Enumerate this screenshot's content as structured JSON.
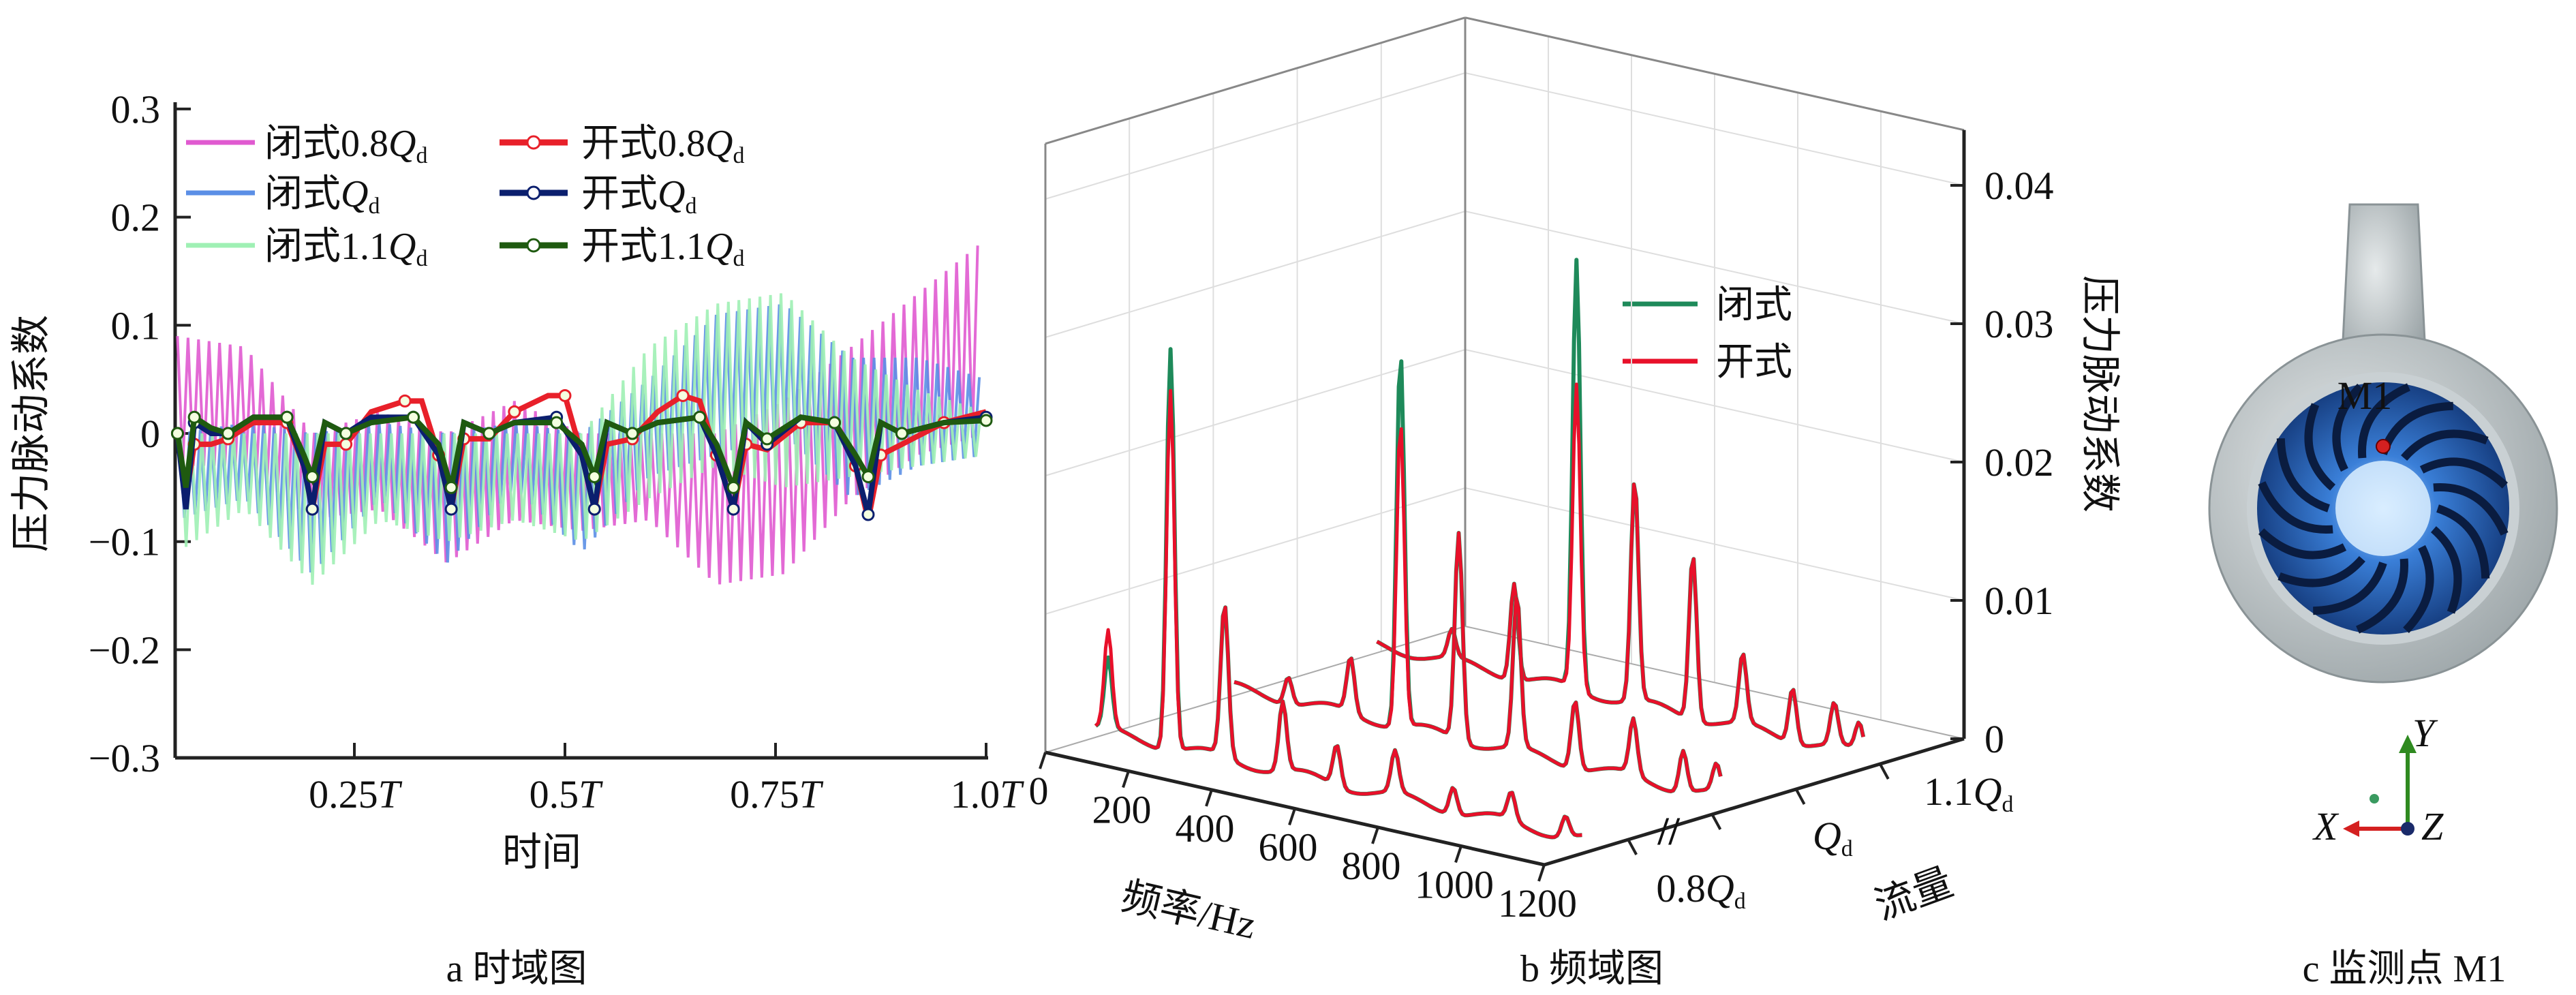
{
  "captions": {
    "a": "a  时域图",
    "b": "b  频域图",
    "c": "c  监测点 M1"
  },
  "chart_data": [
    {
      "type": "line",
      "title": "时域图",
      "xlabel": "时间",
      "ylabel": "压力脉动系数",
      "xlim": [
        0.037,
        1.0
      ],
      "ylim": [
        -0.3,
        0.3
      ],
      "yticks": [
        0.3,
        0.2,
        0.1,
        0,
        -0.1,
        -0.2,
        -0.3
      ],
      "ytick_labels": [
        "0.3",
        "0.2",
        "0.1",
        "0",
        "−0.1",
        "−0.2",
        "−0.3"
      ],
      "xticks": [
        0.25,
        0.5,
        0.75,
        1.0
      ],
      "xtick_labels": [
        [
          "0.25",
          "T"
        ],
        [
          "0.5",
          "T"
        ],
        [
          "0.75",
          "T"
        ],
        [
          "1.0",
          "T"
        ]
      ],
      "legend_position": "top-left",
      "closed_envelope_x": [
        0.04,
        0.12,
        0.2,
        0.28,
        0.36,
        0.44,
        0.52,
        0.6,
        0.68,
        0.76,
        0.84,
        0.92,
        1.0
      ],
      "closed_series": [
        {
          "prefix": "闭式0.8",
          "q": "Q",
          "sub": "d",
          "color": "#e05ad0",
          "upper": [
            0.09,
            0.08,
            0.0,
            0.02,
            0.0,
            0.03,
            0.0,
            0.0,
            0.0,
            0.03,
            0.08,
            0.13,
            0.18
          ],
          "lower": [
            -0.03,
            -0.03,
            -0.08,
            -0.07,
            -0.12,
            -0.08,
            -0.09,
            -0.08,
            -0.14,
            -0.13,
            -0.06,
            -0.02,
            0.0
          ]
        },
        {
          "prefix": "闭式",
          "q": "Q",
          "sub": "d",
          "color": "#5b8fe6",
          "upper": [
            0.0,
            0.01,
            0.0,
            0.01,
            0.0,
            0.01,
            0.0,
            0.05,
            0.11,
            0.12,
            0.07,
            0.07,
            0.05
          ],
          "lower": [
            -0.08,
            -0.06,
            -0.13,
            -0.06,
            -0.12,
            -0.05,
            -0.11,
            -0.04,
            -0.02,
            0.0,
            -0.06,
            -0.03,
            -0.02
          ]
        },
        {
          "prefix": "闭式1.1",
          "q": "Q",
          "sub": "d",
          "color": "#9ff0b4",
          "upper": [
            0.0,
            0.0,
            0.0,
            0.0,
            0.0,
            0.0,
            0.0,
            0.08,
            0.12,
            0.13,
            0.07,
            0.04,
            0.02
          ],
          "lower": [
            -0.11,
            -0.07,
            -0.14,
            -0.08,
            -0.1,
            -0.08,
            -0.1,
            -0.06,
            -0.03,
            -0.05,
            -0.04,
            -0.03,
            -0.02
          ]
        }
      ],
      "open_series": [
        {
          "prefix": "开式0.8",
          "q": "Q",
          "sub": "d",
          "color": "#e8202a",
          "points": [
            [
              0.04,
              0.0
            ],
            [
              0.05,
              -0.06
            ],
            [
              0.06,
              -0.01
            ],
            [
              0.08,
              -0.01
            ],
            [
              0.1,
              -0.005
            ],
            [
              0.13,
              0.01
            ],
            [
              0.17,
              0.01
            ],
            [
              0.19,
              -0.03
            ],
            [
              0.2,
              -0.07
            ],
            [
              0.215,
              -0.01
            ],
            [
              0.24,
              -0.01
            ],
            [
              0.27,
              0.02
            ],
            [
              0.31,
              0.03
            ],
            [
              0.33,
              0.03
            ],
            [
              0.35,
              -0.02
            ],
            [
              0.365,
              -0.07
            ],
            [
              0.38,
              -0.005
            ],
            [
              0.41,
              -0.005
            ],
            [
              0.44,
              0.02
            ],
            [
              0.48,
              0.035
            ],
            [
              0.5,
              0.035
            ],
            [
              0.52,
              -0.02
            ],
            [
              0.535,
              -0.07
            ],
            [
              0.55,
              -0.01
            ],
            [
              0.58,
              -0.005
            ],
            [
              0.61,
              0.02
            ],
            [
              0.64,
              0.035
            ],
            [
              0.66,
              0.03
            ],
            [
              0.68,
              -0.02
            ],
            [
              0.7,
              -0.07
            ],
            [
              0.715,
              -0.01
            ],
            [
              0.74,
              -0.015
            ],
            [
              0.78,
              0.01
            ],
            [
              0.82,
              0.01
            ],
            [
              0.845,
              -0.03
            ],
            [
              0.86,
              -0.08
            ],
            [
              0.875,
              -0.02
            ],
            [
              0.9,
              -0.01
            ],
            [
              0.95,
              0.01
            ],
            [
              1.0,
              0.02
            ]
          ]
        },
        {
          "prefix": "开式",
          "q": "Q",
          "sub": "d",
          "color": "#0b1f6e",
          "points": [
            [
              0.04,
              0.0
            ],
            [
              0.05,
              -0.07
            ],
            [
              0.06,
              0.01
            ],
            [
              0.08,
              0.0
            ],
            [
              0.1,
              0.0
            ],
            [
              0.13,
              0.015
            ],
            [
              0.17,
              0.015
            ],
            [
              0.19,
              -0.03
            ],
            [
              0.2,
              -0.07
            ],
            [
              0.215,
              0.01
            ],
            [
              0.24,
              0.0
            ],
            [
              0.27,
              0.015
            ],
            [
              0.32,
              0.015
            ],
            [
              0.35,
              -0.02
            ],
            [
              0.365,
              -0.07
            ],
            [
              0.38,
              0.01
            ],
            [
              0.41,
              0.0
            ],
            [
              0.44,
              0.01
            ],
            [
              0.49,
              0.015
            ],
            [
              0.52,
              -0.02
            ],
            [
              0.535,
              -0.07
            ],
            [
              0.55,
              0.01
            ],
            [
              0.58,
              0.0
            ],
            [
              0.61,
              0.01
            ],
            [
              0.66,
              0.015
            ],
            [
              0.68,
              -0.02
            ],
            [
              0.7,
              -0.07
            ],
            [
              0.715,
              0.01
            ],
            [
              0.74,
              -0.01
            ],
            [
              0.78,
              0.015
            ],
            [
              0.82,
              0.01
            ],
            [
              0.845,
              -0.03
            ],
            [
              0.86,
              -0.075
            ],
            [
              0.875,
              0.01
            ],
            [
              0.9,
              0.0
            ],
            [
              0.95,
              0.01
            ],
            [
              1.0,
              0.015
            ]
          ]
        },
        {
          "prefix": "开式1.1",
          "q": "Q",
          "sub": "d",
          "color": "#1f5a10",
          "points": [
            [
              0.04,
              0.0
            ],
            [
              0.05,
              -0.05
            ],
            [
              0.06,
              0.015
            ],
            [
              0.08,
              0.005
            ],
            [
              0.1,
              0.0
            ],
            [
              0.13,
              0.015
            ],
            [
              0.17,
              0.015
            ],
            [
              0.19,
              -0.02
            ],
            [
              0.2,
              -0.04
            ],
            [
              0.215,
              0.01
            ],
            [
              0.24,
              0.0
            ],
            [
              0.27,
              0.01
            ],
            [
              0.32,
              0.015
            ],
            [
              0.35,
              -0.01
            ],
            [
              0.365,
              -0.05
            ],
            [
              0.38,
              0.01
            ],
            [
              0.41,
              0.0
            ],
            [
              0.44,
              0.01
            ],
            [
              0.49,
              0.01
            ],
            [
              0.52,
              -0.01
            ],
            [
              0.535,
              -0.04
            ],
            [
              0.55,
              0.01
            ],
            [
              0.58,
              0.0
            ],
            [
              0.61,
              0.01
            ],
            [
              0.66,
              0.015
            ],
            [
              0.68,
              -0.01
            ],
            [
              0.7,
              -0.05
            ],
            [
              0.715,
              0.01
            ],
            [
              0.74,
              -0.005
            ],
            [
              0.78,
              0.015
            ],
            [
              0.82,
              0.01
            ],
            [
              0.845,
              -0.02
            ],
            [
              0.86,
              -0.04
            ],
            [
              0.875,
              0.01
            ],
            [
              0.9,
              0.0
            ],
            [
              0.95,
              0.01
            ],
            [
              1.0,
              0.012
            ]
          ]
        }
      ]
    },
    {
      "type": "waterfall",
      "title": "频域图",
      "xlabel": "频率/Hz",
      "ylabel": "流量",
      "zlabel": "压力脉动系数",
      "xlim": [
        0,
        1200
      ],
      "zlim": [
        0,
        0.044
      ],
      "xticks": [
        0,
        200,
        400,
        600,
        800,
        1000,
        1200
      ],
      "zticks": [
        0,
        0.01,
        0.02,
        0.03,
        0.04
      ],
      "ztick_labels": [
        "0",
        "0.01",
        "0.02",
        "0.03",
        "0.04"
      ],
      "legend": [
        {
          "label": "闭式",
          "color": "#1e8a5a"
        },
        {
          "label": "开式",
          "color": "#e8102a"
        }
      ],
      "legend_position": "upper-right",
      "rows": [
        {
          "prefix": "0.8",
          "q": "Q",
          "sub": "d",
          "peaks": [
            [
              50,
              0.005,
              0.007
            ],
            [
              200,
              0.029,
              0.026
            ],
            [
              330,
              0.011,
              0.011
            ],
            [
              470,
              0.005,
              0.005
            ],
            [
              600,
              0.003,
              0.003
            ],
            [
              740,
              0.003,
              0.003
            ],
            [
              880,
              0.002,
              0.002
            ],
            [
              1020,
              0.002,
              0.002
            ],
            [
              1150,
              0.0015,
              0.0015
            ]
          ]
        },
        {
          "prefix": "",
          "q": "Q",
          "sub": "d",
          "peaks": [
            [
              150,
              0.002,
              0.002
            ],
            [
              300,
              0.004,
              0.004
            ],
            [
              420,
              0.027,
              0.022
            ],
            [
              560,
              0.015,
              0.015
            ],
            [
              700,
              0.011,
              0.011
            ],
            [
              840,
              0.005,
              0.005
            ],
            [
              980,
              0.004,
              0.004
            ],
            [
              1100,
              0.003,
              0.003
            ],
            [
              1180,
              0.002,
              0.002
            ]
          ]
        },
        {
          "prefix": "1.1",
          "q": "Q",
          "sub": "d",
          "peaks": [
            [
              200,
              0.002,
              0.002
            ],
            [
              350,
              0.007,
              0.007
            ],
            [
              500,
              0.031,
              0.022
            ],
            [
              640,
              0.016,
              0.016
            ],
            [
              780,
              0.012,
              0.012
            ],
            [
              900,
              0.005,
              0.005
            ],
            [
              1020,
              0.004,
              0.004
            ],
            [
              1120,
              0.003,
              0.003
            ],
            [
              1180,
              0.002,
              0.002
            ]
          ]
        }
      ]
    }
  ],
  "pump": {
    "point_label": "M1",
    "axis_x": "X",
    "axis_y": "Y",
    "axis_z": "Z"
  }
}
